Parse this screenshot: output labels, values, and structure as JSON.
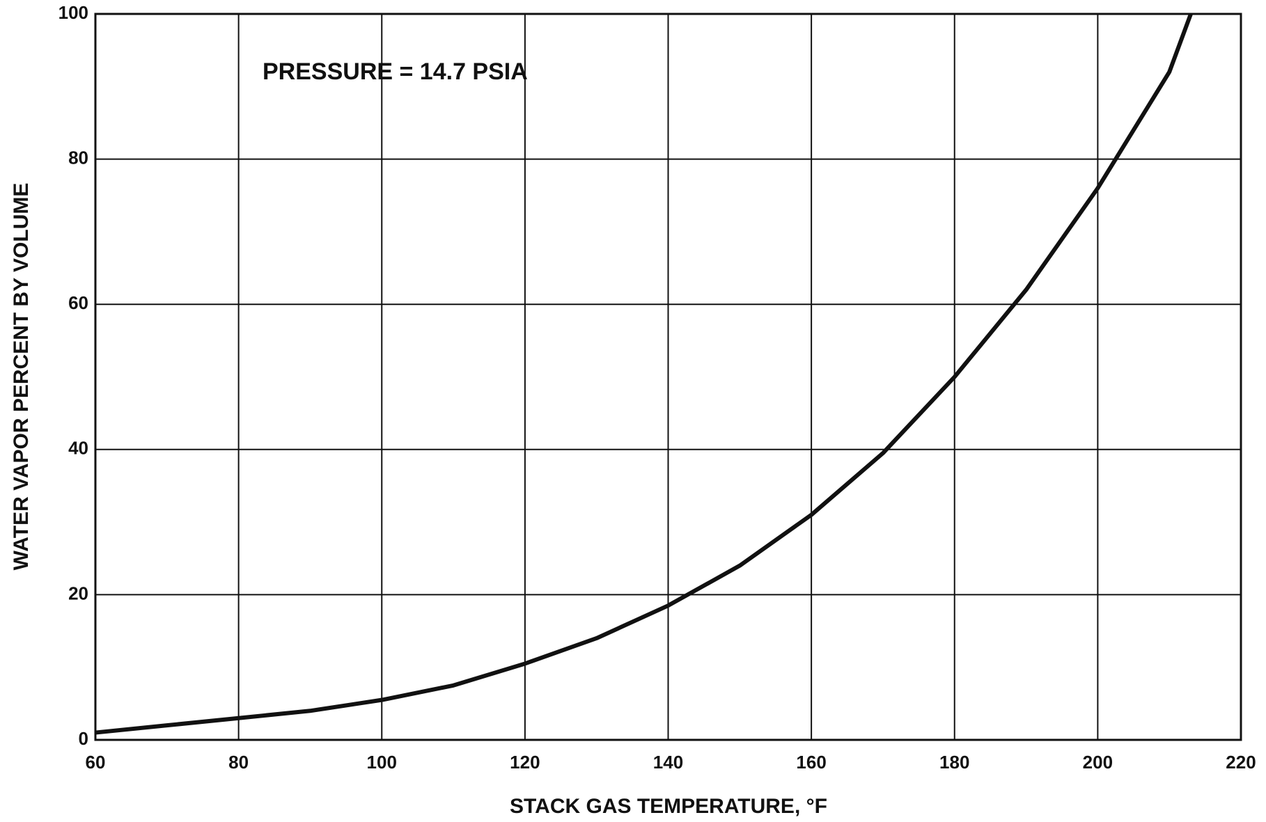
{
  "chart_data": {
    "type": "line",
    "annotation": "PRESSURE = 14.7 PSIA",
    "x_label": "STACK GAS TEMPERATURE, °F",
    "y_label": "WATER VAPOR PERCENT BY VOLUME",
    "x": [
      60,
      70,
      80,
      90,
      100,
      110,
      120,
      130,
      140,
      150,
      160,
      170,
      180,
      190,
      200,
      210,
      213
    ],
    "series": [
      {
        "color": "#111111",
        "values": [
          1,
          2,
          3,
          4,
          5.5,
          7.5,
          10.5,
          14,
          18.5,
          24,
          31,
          39.5,
          50,
          62,
          76,
          92,
          100
        ]
      }
    ],
    "xlim": [
      60,
      220
    ],
    "xticks": [
      60,
      80,
      100,
      120,
      140,
      160,
      180,
      200,
      220
    ],
    "ylim": [
      0,
      100
    ],
    "yticks": [
      0,
      20,
      40,
      60,
      80,
      100
    ],
    "grid": true
  }
}
